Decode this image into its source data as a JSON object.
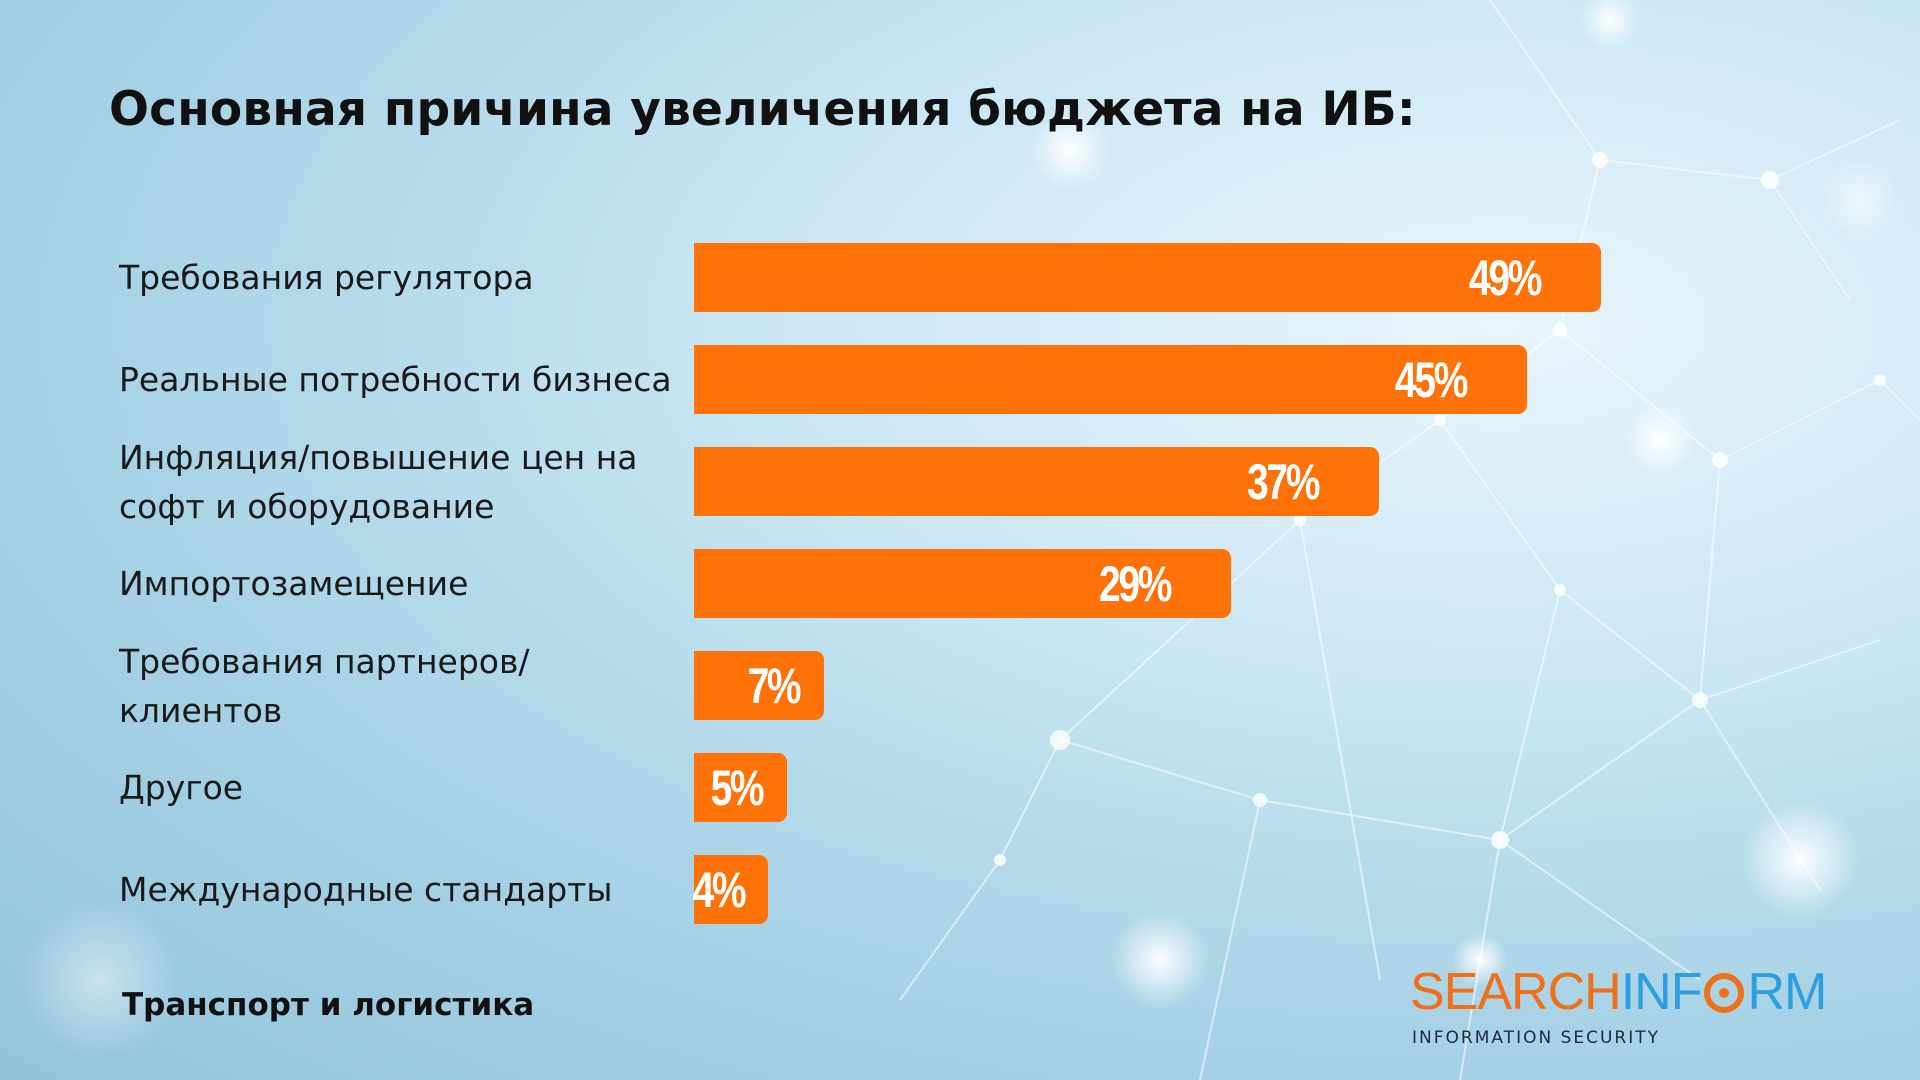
{
  "title": "Основная причина увеличения бюджета на ИБ:",
  "footer": "Транспорт и логистика",
  "logo": {
    "main_part1": "SEARCH",
    "main_part2": "INF",
    "main_part3": "RM",
    "subtitle": "INFORMATION SECURITY"
  },
  "colors": {
    "bar": "#ff7208",
    "logo_orange": "#f0701a",
    "logo_blue": "#2b9fe0"
  },
  "chart_data": {
    "type": "bar",
    "orientation": "horizontal",
    "categories": [
      "Требования регулятора",
      "Реальные потребности бизнеса",
      "Инфляция/повышение цен на софт и оборудование",
      "Импортозамещение",
      "Требования партнеров/ клиентов",
      "Другое",
      "Международные стандарты"
    ],
    "category_lines": [
      [
        "Требования регулятора"
      ],
      [
        "Реальные потребности бизнеса"
      ],
      [
        "Инфляция/повышение цен на",
        "софт и оборудование"
      ],
      [
        "Импортозамещение"
      ],
      [
        "Требования партнеров/",
        "клиентов"
      ],
      [
        "Другое"
      ],
      [
        "Международные стандарты"
      ]
    ],
    "values": [
      49,
      45,
      37,
      29,
      7,
      5,
      4
    ],
    "value_labels": [
      "49%",
      "45%",
      "37%",
      "29%",
      "7%",
      "5%",
      "4%"
    ],
    "unit": "%",
    "title": "Основная причина увеличения бюджета на ИБ:",
    "xlabel": "",
    "ylabel": "",
    "grid": false
  }
}
